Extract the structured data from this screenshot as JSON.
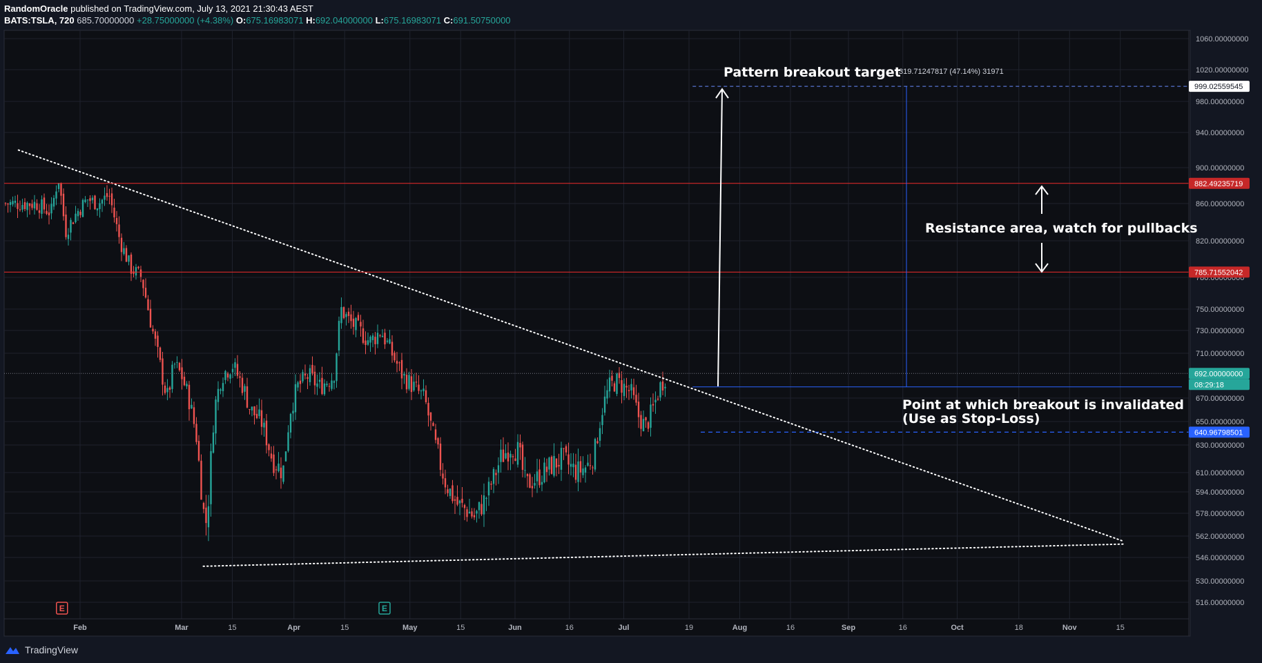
{
  "header": {
    "author": "RandomOracle",
    "published_text": "published on TradingView.com, July 13, 2021 21:30:43 AEST",
    "symbol": "BATS:TSLA, 720",
    "last": "685.70000000",
    "change": "+28.75000000 (+4.38%)",
    "o_label": "O:",
    "o_value": "675.16983071",
    "h_label": "H:",
    "h_value": "692.04000000",
    "l_label": "L:",
    "l_value": "675.16983071",
    "c_label": "C:",
    "c_value": "691.50750000"
  },
  "footer": {
    "brand": "TradingView"
  },
  "colors": {
    "background": "#131722",
    "up": "#26a69a",
    "down": "#ef5350",
    "resistance": "#ef2b2b",
    "invalidation": "#2962ff",
    "target": "#ffffff",
    "grid": "#1e222d"
  },
  "chart_data": {
    "type": "candlestick",
    "symbol": "BATS:TSLA",
    "interval": "720",
    "y_ticks": [
      1060,
      1020,
      980,
      940,
      900,
      860,
      820,
      780,
      750,
      730,
      710,
      670,
      650,
      630,
      610,
      594,
      578,
      562,
      546,
      530,
      516
    ],
    "y_tick_labels": [
      "1060.00000000",
      "1020.00000000",
      "980.00000000",
      "940.00000000",
      "900.00000000",
      "860.00000000",
      "820.00000000",
      "780.00000000",
      "750.00000000",
      "730.00000000",
      "710.00000000",
      "670.00000000",
      "650.00000000",
      "630.00000000",
      "610.00000000",
      "594.00000000",
      "578.00000000",
      "562.00000000",
      "546.00000000",
      "530.00000000",
      "516.00000000"
    ],
    "x_ticks": [
      {
        "label": "Feb",
        "date": "2021-02-01"
      },
      {
        "label": "Mar",
        "date": "2021-03-01"
      },
      {
        "label": "15",
        "date": "2021-03-15"
      },
      {
        "label": "Apr",
        "date": "2021-04-01"
      },
      {
        "label": "15",
        "date": "2021-04-15"
      },
      {
        "label": "May",
        "date": "2021-05-03"
      },
      {
        "label": "15",
        "date": "2021-05-17"
      },
      {
        "label": "Jun",
        "date": "2021-06-01"
      },
      {
        "label": "16",
        "date": "2021-06-16"
      },
      {
        "label": "Jul",
        "date": "2021-07-01"
      },
      {
        "label": "19",
        "date": "2021-07-19"
      },
      {
        "label": "Aug",
        "date": "2021-08-02"
      },
      {
        "label": "16",
        "date": "2021-08-16"
      },
      {
        "label": "Sep",
        "date": "2021-09-01"
      },
      {
        "label": "16",
        "date": "2021-09-16"
      },
      {
        "label": "Oct",
        "date": "2021-10-01"
      },
      {
        "label": "18",
        "date": "2021-10-18"
      },
      {
        "label": "Nov",
        "date": "2021-11-01"
      },
      {
        "label": "15",
        "date": "2021-11-15"
      }
    ],
    "price_path": [
      [
        "2021-01-20",
        860
      ],
      [
        "2021-01-24",
        850
      ],
      [
        "2021-01-26",
        890
      ],
      [
        "2021-01-28",
        830
      ],
      [
        "2021-01-31",
        850
      ],
      [
        "2021-02-03",
        865
      ],
      [
        "2021-02-06",
        860
      ],
      [
        "2021-02-09",
        870
      ],
      [
        "2021-02-12",
        820
      ],
      [
        "2021-02-15",
        790
      ],
      [
        "2021-02-18",
        780
      ],
      [
        "2021-02-21",
        730
      ],
      [
        "2021-02-23",
        700
      ],
      [
        "2021-02-25",
        670
      ],
      [
        "2021-02-27",
        700
      ],
      [
        "2021-03-01",
        690
      ],
      [
        "2021-03-03",
        670
      ],
      [
        "2021-03-05",
        640
      ],
      [
        "2021-03-07",
        580
      ],
      [
        "2021-03-08",
        570
      ],
      [
        "2021-03-10",
        660
      ],
      [
        "2021-03-12",
        690
      ],
      [
        "2021-03-15",
        700
      ],
      [
        "2021-03-18",
        680
      ],
      [
        "2021-03-20",
        660
      ],
      [
        "2021-03-23",
        650
      ],
      [
        "2021-03-26",
        620
      ],
      [
        "2021-03-29",
        610
      ],
      [
        "2021-03-31",
        660
      ],
      [
        "2021-04-02",
        680
      ],
      [
        "2021-04-05",
        690
      ],
      [
        "2021-04-08",
        680
      ],
      [
        "2021-04-12",
        690
      ],
      [
        "2021-04-14",
        750
      ],
      [
        "2021-04-16",
        740
      ],
      [
        "2021-04-19",
        730
      ],
      [
        "2021-04-22",
        720
      ],
      [
        "2021-04-25",
        730
      ],
      [
        "2021-04-28",
        710
      ],
      [
        "2021-05-01",
        690
      ],
      [
        "2021-05-04",
        680
      ],
      [
        "2021-05-07",
        670
      ],
      [
        "2021-05-10",
        630
      ],
      [
        "2021-05-13",
        600
      ],
      [
        "2021-05-16",
        585
      ],
      [
        "2021-05-19",
        580
      ],
      [
        "2021-05-21",
        575
      ],
      [
        "2021-05-24",
        590
      ],
      [
        "2021-05-26",
        605
      ],
      [
        "2021-05-28",
        620
      ],
      [
        "2021-05-31",
        630
      ],
      [
        "2021-06-02",
        625
      ],
      [
        "2021-06-04",
        600
      ],
      [
        "2021-06-07",
        605
      ],
      [
        "2021-06-09",
        610
      ],
      [
        "2021-06-11",
        615
      ],
      [
        "2021-06-14",
        620
      ],
      [
        "2021-06-16",
        615
      ],
      [
        "2021-06-18",
        610
      ],
      [
        "2021-06-21",
        615
      ],
      [
        "2021-06-23",
        625
      ],
      [
        "2021-06-25",
        660
      ],
      [
        "2021-06-27",
        680
      ],
      [
        "2021-06-29",
        685
      ],
      [
        "2021-07-01",
        680
      ],
      [
        "2021-07-03",
        675
      ],
      [
        "2021-07-05",
        655
      ],
      [
        "2021-07-07",
        645
      ],
      [
        "2021-07-09",
        660
      ],
      [
        "2021-07-11",
        680
      ],
      [
        "2021-07-13",
        692
      ]
    ],
    "drawings": {
      "descending_trendline": {
        "from": [
          "2021-01-15",
          920
        ],
        "to": [
          "2021-11-16",
          558
        ]
      },
      "ascending_trendline": {
        "from": [
          "2021-03-07",
          540
        ],
        "to": [
          "2021-11-16",
          556
        ]
      },
      "resistance_upper": 882.49235719,
      "resistance_lower": 785.71552042,
      "target": 999.02559545,
      "invalidation": 640.96798501,
      "breakout_level": 680,
      "last_price": 692
    },
    "price_labels": [
      {
        "value": "999.02559545",
        "kind": "target"
      },
      {
        "value": "882.49235719",
        "kind": "resistance"
      },
      {
        "value": "785.71552042",
        "kind": "resistance"
      },
      {
        "value": "692.00000000",
        "kind": "last"
      },
      {
        "value": "08:29:18",
        "kind": "countdown"
      },
      {
        "value": "640.96798501",
        "kind": "invalidation"
      }
    ],
    "annotations": {
      "measure_text": "319.71247817 (47.14%) 31971",
      "target_text": "Pattern breakout target",
      "resistance_text": "Resistance area, watch for pullbacks",
      "invalid_line1": "Point at which breakout is invalidated",
      "invalid_line2": "(Use as Stop-Loss)"
    },
    "earnings_markers": [
      {
        "date": "2021-01-27",
        "letter": "E",
        "color": "#ef5350"
      },
      {
        "date": "2021-04-26",
        "letter": "E",
        "color": "#26a69a"
      }
    ]
  }
}
